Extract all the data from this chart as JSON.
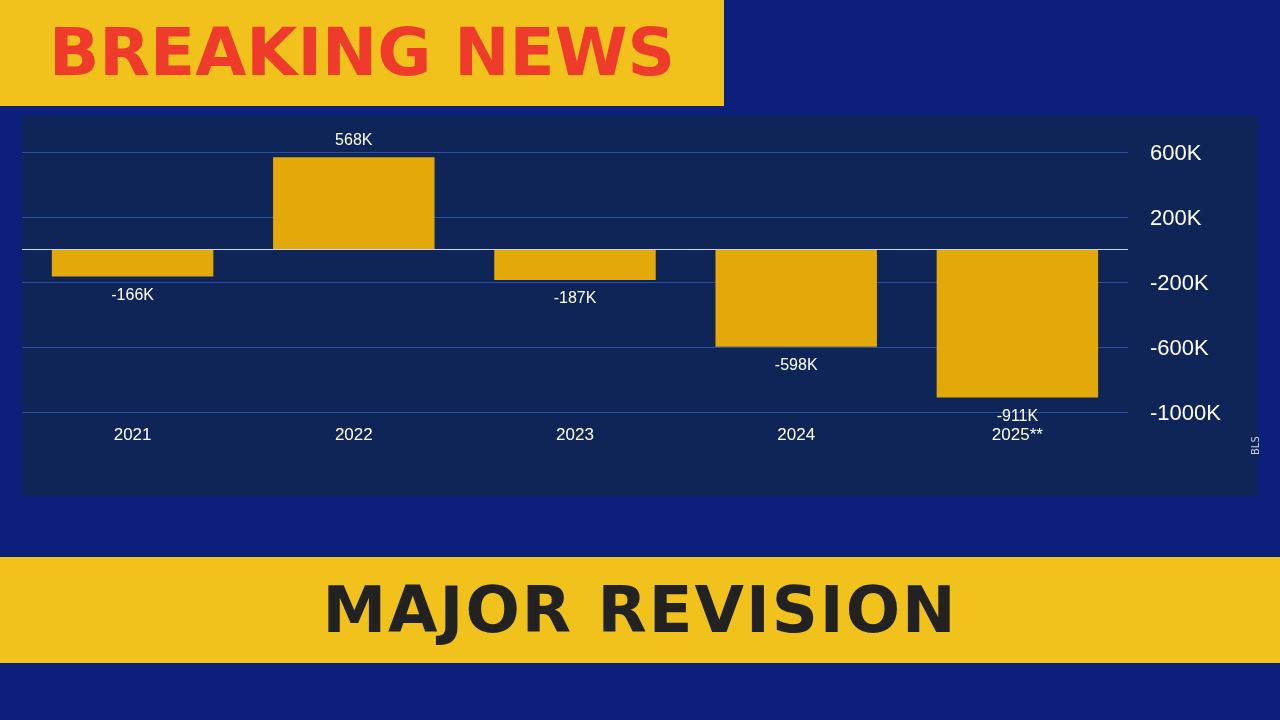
{
  "chart_data": {
    "type": "bar",
    "title": "BREAKING NEWS",
    "subtitle": "MAJOR REVISION",
    "categories": [
      "2021",
      "2022",
      "2023",
      "2024",
      "2025**"
    ],
    "values": [
      -166,
      568,
      -187,
      -598,
      -911
    ],
    "value_labels": [
      "-166K",
      "568K",
      "-187K",
      "-598K",
      "-911K"
    ],
    "color": "#e2a908",
    "ylim": [
      -1000,
      600
    ],
    "ref_lines": [
      {
        "axis": "y",
        "value": 0,
        "color": "#c9d3ee"
      }
    ],
    "yticks": [
      {
        "value": 600,
        "label": "600K"
      },
      {
        "value": 200,
        "label": "200K"
      },
      {
        "value": -200,
        "label": "-200K"
      },
      {
        "value": -600,
        "label": "-600K"
      },
      {
        "value": -1000,
        "label": "-1000K"
      }
    ],
    "grid": "y",
    "annotations": [
      "BLS"
    ]
  }
}
